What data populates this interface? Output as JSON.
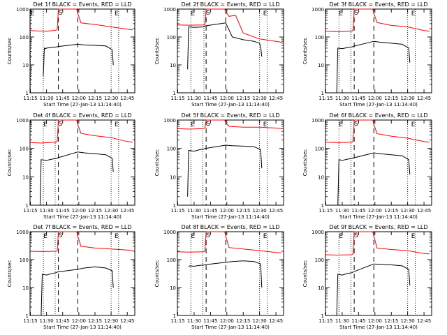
{
  "figure": {
    "tick_times": [
      "11:15",
      "11:30",
      "11:45",
      "12:00",
      "12:15",
      "12:30",
      "12:45"
    ],
    "ylabel": "Counts/sec",
    "xlabel": "Start Time (27-Jan-13 11:14:40)",
    "y_ticks": [
      "1",
      "10",
      "100",
      "1000"
    ],
    "marker_S": "S",
    "marker_E": "E",
    "colors": {
      "events": "#000000",
      "lld": "#ff0000",
      "axis": "#000000"
    }
  },
  "chart_data": [
    {
      "type": "line",
      "title": "Det 1f BLACK = Events, RED = LLD",
      "xlim": [
        "11:14:40",
        "12:52:00"
      ],
      "ylim": [
        1,
        1000
      ],
      "yscale": "log",
      "xlabel": "Start Time (27-Jan-13 11:14:40)",
      "ylabel": "Counts/sec",
      "dotted_lines": [
        "11:15",
        "11:27",
        "12:30",
        "12:37"
      ],
      "dashed_lines": [
        "11:41",
        "11:59"
      ],
      "series": [
        {
          "name": "Events",
          "x": [
            "11:27",
            "11:28",
            "11:29",
            "11:30",
            "11:35",
            "11:39",
            "11:40",
            "11:59",
            "12:05",
            "12:15",
            "12:25",
            "12:31",
            "12:32"
          ],
          "y": [
            4,
            40,
            38,
            40,
            42,
            44,
            45,
            55,
            52,
            50,
            48,
            35,
            10
          ]
        },
        {
          "name": "LLD",
          "x": [
            "11:15",
            "11:20",
            "11:30",
            "11:39",
            "11:40",
            "11:41",
            "11:44",
            "11:58",
            "11:59",
            "12:02",
            "12:15",
            "12:30",
            "12:45",
            "12:50"
          ],
          "y": [
            170,
            165,
            160,
            175,
            190,
            1000,
            1000,
            1000,
            700,
            320,
            280,
            230,
            190,
            180
          ]
        }
      ]
    },
    {
      "type": "line",
      "title": "Det 2f BLACK = Events, RED = LLD",
      "xlim": [
        "11:14:40",
        "12:52:00"
      ],
      "ylim": [
        1,
        1000
      ],
      "yscale": "log",
      "xlabel": "Start Time (27-Jan-13 11:14:40)",
      "ylabel": "Counts/sec",
      "dotted_lines": [
        "11:27",
        "11:39",
        "12:30",
        "12:37"
      ],
      "dashed_lines": [
        "11:41",
        "11:59"
      ],
      "series": [
        {
          "name": "Events",
          "x": [
            "11:24",
            "11:25",
            "11:30",
            "11:39",
            "11:40",
            "11:59",
            "12:05",
            "12:15",
            "12:25",
            "12:30",
            "12:31",
            "12:32"
          ],
          "y": [
            7,
            230,
            220,
            230,
            250,
            320,
            100,
            80,
            70,
            60,
            45,
            20
          ]
        },
        {
          "name": "LLD",
          "x": [
            "11:15",
            "11:25",
            "11:39",
            "11:40",
            "11:41",
            "11:44",
            "11:58",
            "11:59",
            "12:02",
            "12:08",
            "12:15",
            "12:30",
            "12:45",
            "12:50"
          ],
          "y": [
            270,
            265,
            270,
            300,
            1000,
            1000,
            1000,
            800,
            550,
            600,
            140,
            85,
            70,
            65
          ]
        }
      ]
    },
    {
      "type": "line",
      "title": "Det 3f BLACK = Events, RED = LLD",
      "xlim": [
        "11:14:40",
        "12:52:00"
      ],
      "ylim": [
        1,
        1000
      ],
      "yscale": "log",
      "xlabel": "Start Time (27-Jan-13 11:14:40)",
      "ylabel": "Counts/sec",
      "dotted_lines": [
        "11:27",
        "11:38",
        "12:30",
        "12:37"
      ],
      "dashed_lines": [
        "11:41",
        "11:59"
      ],
      "series": [
        {
          "name": "Events",
          "x": [
            "11:25",
            "11:26",
            "11:30",
            "11:35",
            "11:39",
            "11:40",
            "11:59",
            "12:05",
            "12:15",
            "12:25",
            "12:31",
            "12:32"
          ],
          "y": [
            1,
            40,
            38,
            42,
            44,
            46,
            70,
            65,
            60,
            55,
            40,
            12
          ]
        },
        {
          "name": "LLD",
          "x": [
            "11:15",
            "11:25",
            "11:39",
            "11:40",
            "11:41",
            "11:44",
            "11:58",
            "11:59",
            "12:02",
            "12:15",
            "12:30",
            "12:45",
            "12:50"
          ],
          "y": [
            160,
            155,
            160,
            180,
            1000,
            1000,
            1000,
            700,
            330,
            260,
            230,
            170,
            160
          ]
        }
      ]
    },
    {
      "type": "line",
      "title": "Det 4f BLACK = Events, RED = LLD",
      "xlim": [
        "11:14:40",
        "12:52:00"
      ],
      "ylim": [
        1,
        1000
      ],
      "yscale": "log",
      "xlabel": "Start Time (27-Jan-13 11:14:40)",
      "ylabel": "Counts/sec",
      "dotted_lines": [
        "11:27",
        "11:38",
        "12:30",
        "12:37"
      ],
      "dashed_lines": [
        "11:41",
        "11:59"
      ],
      "series": [
        {
          "name": "Events",
          "x": [
            "11:24",
            "11:25",
            "11:30",
            "11:35",
            "11:39",
            "11:40",
            "11:59",
            "12:05",
            "12:15",
            "12:25",
            "12:31",
            "12:32"
          ],
          "y": [
            1,
            40,
            38,
            42,
            44,
            46,
            75,
            70,
            65,
            60,
            45,
            15
          ]
        },
        {
          "name": "LLD",
          "x": [
            "11:15",
            "11:25",
            "11:39",
            "11:40",
            "11:41",
            "11:44",
            "11:58",
            "11:59",
            "12:02",
            "12:15",
            "12:30",
            "12:45",
            "12:50"
          ],
          "y": [
            160,
            155,
            165,
            185,
            1000,
            1000,
            1000,
            700,
            340,
            280,
            240,
            175,
            165
          ]
        }
      ]
    },
    {
      "type": "line",
      "title": "Det 5f BLACK = Events, RED = LLD",
      "xlim": [
        "11:14:40",
        "12:52:00"
      ],
      "ylim": [
        1,
        1000
      ],
      "yscale": "log",
      "xlabel": "Start Time (27-Jan-13 11:14:40)",
      "ylabel": "Counts/sec",
      "dotted_lines": [
        "11:27",
        "11:38",
        "12:30",
        "12:37"
      ],
      "dashed_lines": [
        "11:41",
        "11:59"
      ],
      "series": [
        {
          "name": "Events",
          "x": [
            "11:24",
            "11:25",
            "11:30",
            "11:35",
            "11:39",
            "11:40",
            "11:59",
            "12:05",
            "12:15",
            "12:25",
            "12:31",
            "12:32"
          ],
          "y": [
            2,
            85,
            80,
            90,
            95,
            100,
            130,
            125,
            120,
            115,
            90,
            20
          ]
        },
        {
          "name": "LLD",
          "x": [
            "11:15",
            "11:25",
            "11:39",
            "11:40",
            "11:41",
            "11:44",
            "11:58",
            "11:59",
            "12:02",
            "12:15",
            "12:30",
            "12:45",
            "12:50"
          ],
          "y": [
            500,
            480,
            500,
            550,
            1000,
            1000,
            1000,
            800,
            600,
            560,
            560,
            520,
            500
          ]
        }
      ]
    },
    {
      "type": "line",
      "title": "Det 6f BLACK = Events, RED = LLD",
      "xlim": [
        "11:14:40",
        "12:52:00"
      ],
      "ylim": [
        1,
        1000
      ],
      "yscale": "log",
      "xlabel": "Start Time (27-Jan-13 11:14:40)",
      "ylabel": "Counts/sec",
      "dotted_lines": [
        "11:27",
        "11:38",
        "12:30",
        "12:37"
      ],
      "dashed_lines": [
        "11:41",
        "11:59"
      ],
      "series": [
        {
          "name": "Events",
          "x": [
            "11:26",
            "11:27",
            "11:30",
            "11:35",
            "11:39",
            "11:40",
            "11:59",
            "12:05",
            "12:15",
            "12:25",
            "12:31",
            "12:32"
          ],
          "y": [
            1,
            40,
            38,
            42,
            44,
            46,
            70,
            65,
            60,
            55,
            40,
            12
          ]
        },
        {
          "name": "LLD",
          "x": [
            "11:15",
            "11:25",
            "11:39",
            "11:40",
            "11:41",
            "11:44",
            "11:58",
            "11:59",
            "12:02",
            "12:15",
            "12:30",
            "12:45",
            "12:50"
          ],
          "y": [
            165,
            160,
            165,
            185,
            1000,
            1000,
            1000,
            700,
            330,
            270,
            230,
            175,
            165
          ]
        }
      ]
    },
    {
      "type": "line",
      "title": "Det 7f BLACK = Events, RED = LLD",
      "xlim": [
        "11:14:40",
        "12:52:00"
      ],
      "ylim": [
        1,
        1000
      ],
      "yscale": "log",
      "xlabel": "Start Time (27-Jan-13 11:14:40)",
      "ylabel": "Counts/sec",
      "dotted_lines": [
        "11:27",
        "11:38",
        "12:30",
        "12:37"
      ],
      "dashed_lines": [
        "11:41",
        "11:59"
      ],
      "series": [
        {
          "name": "Events",
          "x": [
            "11:25",
            "11:26",
            "11:30",
            "11:35",
            "11:39",
            "11:40",
            "11:59",
            "12:05",
            "12:15",
            "12:25",
            "12:31",
            "12:32"
          ],
          "y": [
            1,
            30,
            28,
            32,
            34,
            36,
            45,
            50,
            55,
            50,
            40,
            10
          ]
        },
        {
          "name": "LLD",
          "x": [
            "11:15",
            "11:25",
            "11:39",
            "11:40",
            "11:41",
            "11:44",
            "11:58",
            "11:59",
            "12:02",
            "12:15",
            "12:30",
            "12:45",
            "12:50"
          ],
          "y": [
            200,
            195,
            200,
            210,
            1000,
            1000,
            1000,
            700,
            300,
            260,
            240,
            220,
            215
          ]
        }
      ]
    },
    {
      "type": "line",
      "title": "Det 8f BLACK = Events, RED = LLD",
      "xlim": [
        "11:14:40",
        "12:52:00"
      ],
      "ylim": [
        1,
        1000
      ],
      "yscale": "log",
      "xlabel": "Start Time (27-Jan-13 11:14:40)",
      "ylabel": "Counts/sec",
      "dotted_lines": [
        "11:27",
        "11:38",
        "12:30",
        "12:37"
      ],
      "dashed_lines": [
        "11:41",
        "11:59"
      ],
      "series": [
        {
          "name": "Events",
          "x": [
            "11:25",
            "11:26",
            "11:30",
            "11:35",
            "11:39",
            "11:40",
            "11:59",
            "12:05",
            "12:15",
            "12:25",
            "12:31",
            "12:32"
          ],
          "y": [
            55,
            60,
            58,
            62,
            64,
            66,
            80,
            85,
            90,
            85,
            70,
            10
          ]
        },
        {
          "name": "LLD",
          "x": [
            "11:15",
            "11:25",
            "11:39",
            "11:40",
            "11:41",
            "11:44",
            "11:58",
            "11:59",
            "12:02",
            "12:15",
            "12:30",
            "12:45",
            "12:50"
          ],
          "y": [
            190,
            185,
            190,
            210,
            1000,
            1000,
            1000,
            700,
            270,
            240,
            210,
            180,
            175
          ]
        }
      ]
    },
    {
      "type": "line",
      "title": "Det 9f BLACK = Events, RED = LLD",
      "xlim": [
        "11:14:40",
        "12:52:00"
      ],
      "ylim": [
        1,
        1000
      ],
      "yscale": "log",
      "xlabel": "Start Time (27-Jan-13 11:14:40)",
      "ylabel": "Counts/sec",
      "dotted_lines": [
        "11:27",
        "11:38",
        "12:30",
        "12:37"
      ],
      "dashed_lines": [
        "11:41",
        "11:59"
      ],
      "series": [
        {
          "name": "Events",
          "x": [
            "11:25",
            "11:26",
            "11:30",
            "11:35",
            "11:39",
            "11:40",
            "11:59",
            "12:05",
            "12:15",
            "12:25",
            "12:31",
            "12:32"
          ],
          "y": [
            1,
            30,
            28,
            32,
            34,
            36,
            70,
            68,
            65,
            60,
            45,
            12
          ]
        },
        {
          "name": "LLD",
          "x": [
            "11:15",
            "11:25",
            "11:39",
            "11:40",
            "11:41",
            "11:44",
            "11:58",
            "11:59",
            "12:02",
            "12:15",
            "12:30",
            "12:45",
            "12:50"
          ],
          "y": [
            150,
            145,
            150,
            165,
            1000,
            1000,
            1000,
            700,
            260,
            230,
            210,
            165,
            160
          ]
        }
      ]
    }
  ]
}
